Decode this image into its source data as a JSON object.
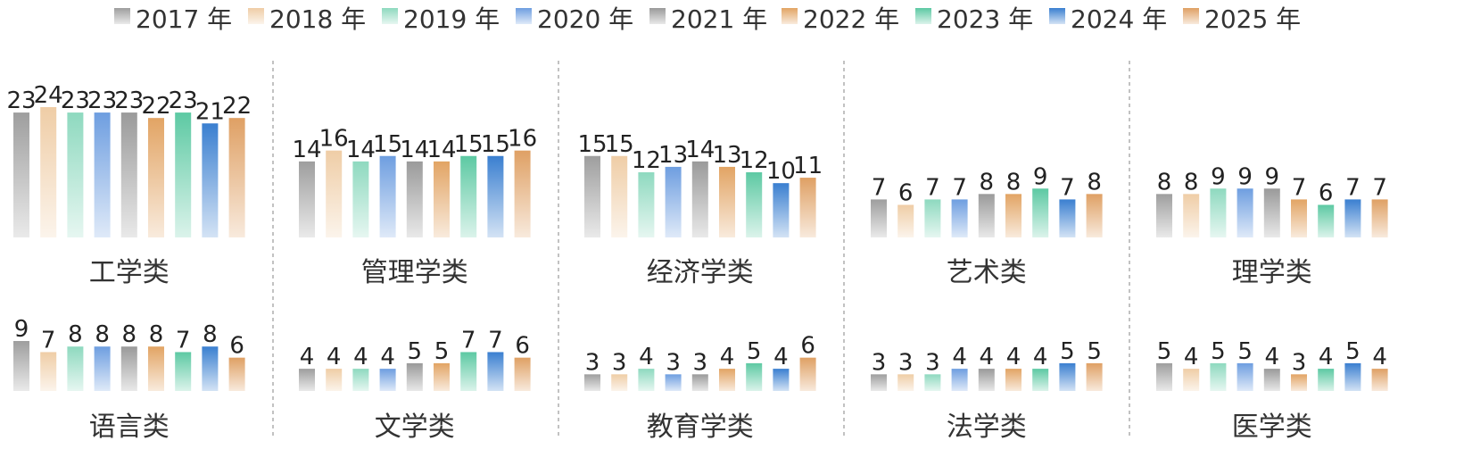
{
  "chart_data": {
    "type": "bar",
    "series": [
      {
        "name": "2017 年",
        "color": "#9e9e9e",
        "values": [
          23,
          14,
          15,
          7,
          8,
          9,
          4,
          3,
          3,
          5
        ]
      },
      {
        "name": "2018 年",
        "color": "#efcda6",
        "values": [
          24,
          16,
          15,
          6,
          8,
          7,
          4,
          3,
          3,
          4
        ]
      },
      {
        "name": "2019 年",
        "color": "#8ed9bf",
        "values": [
          23,
          14,
          12,
          7,
          9,
          8,
          4,
          4,
          3,
          5
        ]
      },
      {
        "name": "2020 年",
        "color": "#6e9ee0",
        "values": [
          23,
          15,
          13,
          7,
          9,
          8,
          4,
          3,
          4,
          5
        ]
      },
      {
        "name": "2021 年",
        "color": "#9a9a9a",
        "values": [
          23,
          14,
          14,
          8,
          9,
          8,
          5,
          3,
          4,
          4
        ]
      },
      {
        "name": "2022 年",
        "color": "#e2a464",
        "values": [
          22,
          14,
          13,
          8,
          7,
          8,
          5,
          4,
          4,
          3
        ]
      },
      {
        "name": "2023 年",
        "color": "#5dc9a3",
        "values": [
          23,
          15,
          12,
          9,
          6,
          7,
          7,
          5,
          4,
          4
        ]
      },
      {
        "name": "2024 年",
        "color": "#3a7fd0",
        "values": [
          21,
          15,
          10,
          7,
          7,
          8,
          7,
          4,
          5,
          5
        ]
      },
      {
        "name": "2025 年",
        "color": "#dfa064",
        "values": [
          22,
          16,
          11,
          8,
          7,
          6,
          6,
          6,
          5,
          4
        ]
      }
    ],
    "categories": [
      "工学类",
      "管理学类",
      "经济学类",
      "艺术类",
      "理学类",
      "语言类",
      "文学类",
      "教育学类",
      "法学类",
      "医学类"
    ],
    "layout": "2 rows × 5 columns of small-multiple bar groups",
    "legend_position": "top",
    "grid": false,
    "separators": "dashed vertical lines between columns"
  }
}
